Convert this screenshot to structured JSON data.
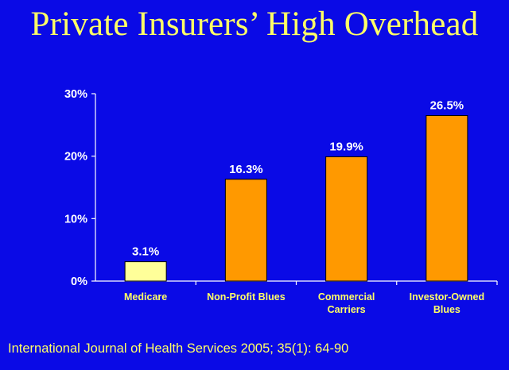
{
  "title": "Private Insurers’ High Overhead",
  "source": "International Journal of Health Services 2005; 35(1): 64-90",
  "colors": {
    "background": "#0a0ae6",
    "title": "#ffff66",
    "highlight_bar": "#ffff99",
    "bar": "#ff9900",
    "axis": "#ffffff"
  },
  "chart_data": {
    "type": "bar",
    "title": "Private Insurers’ High Overhead",
    "xlabel": "",
    "ylabel": "",
    "ylim": [
      0,
      30
    ],
    "yticks": [
      0,
      10,
      20,
      30
    ],
    "ytick_labels": [
      "0%",
      "10%",
      "20%",
      "30%"
    ],
    "grid": false,
    "categories": [
      [
        "Medicare"
      ],
      [
        "Non-Profit Blues"
      ],
      [
        "Commercial",
        "Carriers"
      ],
      [
        "Investor-Owned",
        "Blues"
      ]
    ],
    "values": [
      3.1,
      16.3,
      19.9,
      26.5
    ],
    "value_labels": [
      "3.1%",
      "16.3%",
      "19.9%",
      "26.5%"
    ]
  }
}
